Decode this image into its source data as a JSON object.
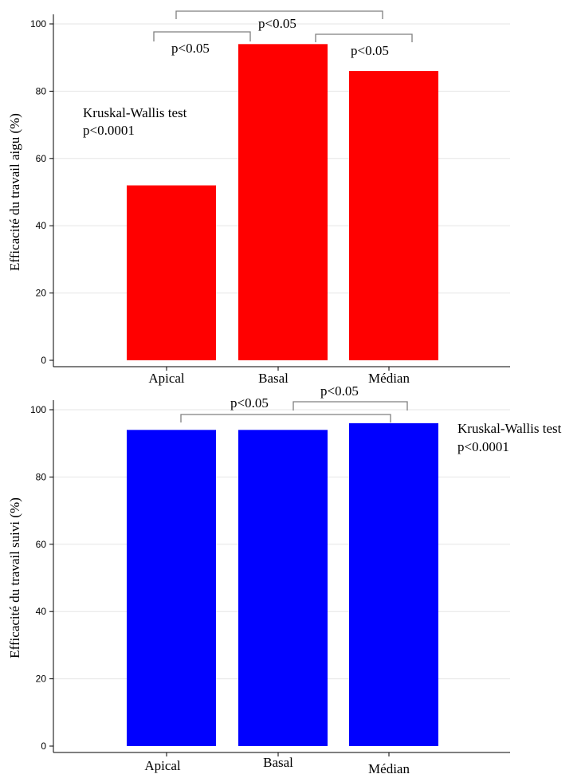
{
  "chart_data": [
    {
      "type": "bar",
      "categories": [
        "Apical",
        "Basal",
        "Médian"
      ],
      "values": [
        52,
        94,
        86
      ],
      "color": "#ff0000",
      "ylabel": "Efficacité du travail aigu (%)",
      "ylim": [
        0,
        100
      ],
      "yticks": [
        0,
        20,
        40,
        60,
        80,
        100
      ],
      "grid": true,
      "test_text": [
        "Kruskal-Wallis test",
        "p<0.0001"
      ],
      "comparisons": [
        {
          "pair": [
            "Apical",
            "Basal"
          ],
          "label": "p<0.05"
        },
        {
          "pair": [
            "Apical",
            "Médian"
          ],
          "label": "p<0.05"
        },
        {
          "pair": [
            "Basal",
            "Médian"
          ],
          "label": "p<0.05"
        }
      ]
    },
    {
      "type": "bar",
      "categories": [
        "Apical",
        "Basal",
        "Médian"
      ],
      "values": [
        94,
        94,
        96
      ],
      "color": "#0000ff",
      "ylabel": "Efficacité du travail suivi  (%)",
      "ylim": [
        0,
        100
      ],
      "yticks": [
        0,
        20,
        40,
        60,
        80,
        100
      ],
      "grid": true,
      "test_text": [
        "Kruskal-Wallis test",
        "p<0.0001"
      ],
      "comparisons": [
        {
          "pair": [
            "Apical",
            "Médian"
          ],
          "label": "p<0.05"
        },
        {
          "pair": [
            "Basal",
            "Médian"
          ],
          "label": "p<0.05"
        }
      ]
    }
  ]
}
